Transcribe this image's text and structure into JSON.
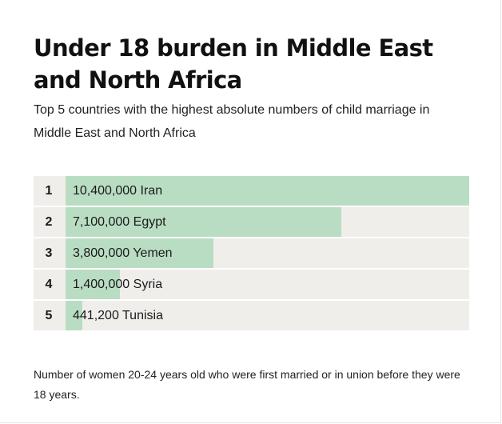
{
  "title": "Under 18 burden in Middle East and North Africa",
  "subtitle": "Top 5 countries with the highest absolute numbers of child marriage in Middle East and North Africa",
  "note": "Number of women 20-24 years old who were first married or in union before they were 18 years.",
  "colors": {
    "bar": "#b9ddc2",
    "track": "#f0eeeb"
  },
  "chart_data": {
    "type": "bar",
    "orientation": "horizontal",
    "title": "Under 18 burden in Middle East and North Africa",
    "subtitle": "Top 5 countries with the highest absolute numbers of child marriage in Middle East and North Africa",
    "categories": [
      "Iran",
      "Egypt",
      "Yemen",
      "Syria",
      "Tunisia"
    ],
    "ranks": [
      "1",
      "2",
      "3",
      "4",
      "5"
    ],
    "values": [
      10400000,
      7100000,
      3800000,
      1400000,
      441200
    ],
    "value_labels": [
      "10,400,000",
      "7,100,000",
      "3,800,000",
      "1,400,000",
      "441,200"
    ],
    "xlim": [
      0,
      10400000
    ],
    "grid": false,
    "legend": "none"
  }
}
